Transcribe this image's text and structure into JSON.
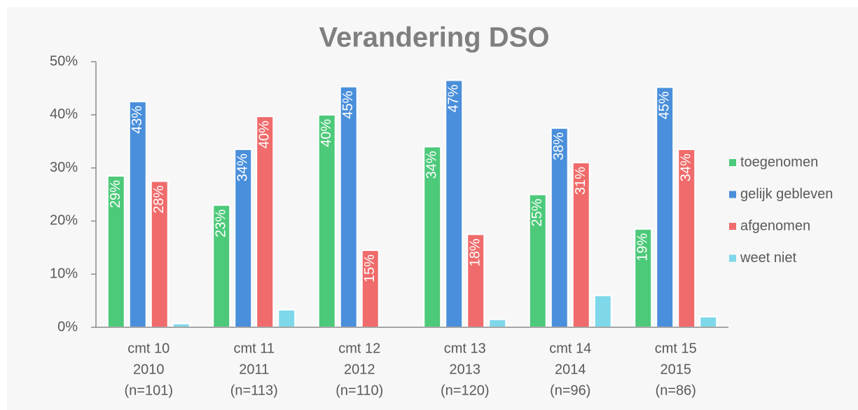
{
  "chart_data": {
    "type": "bar",
    "title": "Verandering DSO",
    "categories": [
      [
        "cmt 10",
        "2010",
        "(n=101)"
      ],
      [
        "cmt 11",
        "2011",
        "(n=113)"
      ],
      [
        "cmt 12",
        "2012",
        "(n=110)"
      ],
      [
        "cmt 13",
        "2013",
        "(n=120)"
      ],
      [
        "cmt 14",
        "2014",
        "(n=96)"
      ],
      [
        "cmt 15",
        "2015",
        "(n=86)"
      ]
    ],
    "series": [
      {
        "name": "toegenomen",
        "color": "#4dc97a",
        "values": [
          28.5,
          23,
          40,
          34,
          25,
          18.5
        ],
        "value_labels": [
          "29%",
          "23%",
          "40%",
          "34%",
          "25%",
          "19%"
        ]
      },
      {
        "name": "gelijk gebleven",
        "color": "#4a8fdb",
        "values": [
          42.5,
          33.5,
          45.3,
          46.5,
          37.5,
          45.2
        ],
        "value_labels": [
          "43%",
          "34%",
          "45%",
          "47%",
          "38%",
          "45%"
        ]
      },
      {
        "name": "afgenomen",
        "color": "#f06b6b",
        "values": [
          27.5,
          39.7,
          14.5,
          17.5,
          31,
          33.5
        ],
        "value_labels": [
          "28%",
          "40%",
          "15%",
          "18%",
          "31%",
          "34%"
        ]
      },
      {
        "name": "weet niet",
        "color": "#7fd8ea",
        "values": [
          0.7,
          3.3,
          0,
          1.5,
          6,
          2
        ]
      }
    ],
    "ylim": [
      0,
      50
    ],
    "yticks": [
      {
        "value": 0,
        "label": "0%"
      },
      {
        "value": 10,
        "label": "10%"
      },
      {
        "value": 20,
        "label": "20%"
      },
      {
        "value": 30,
        "label": "30%"
      },
      {
        "value": 40,
        "label": "40%"
      },
      {
        "value": 50,
        "label": "50%"
      }
    ],
    "legend": "right"
  }
}
